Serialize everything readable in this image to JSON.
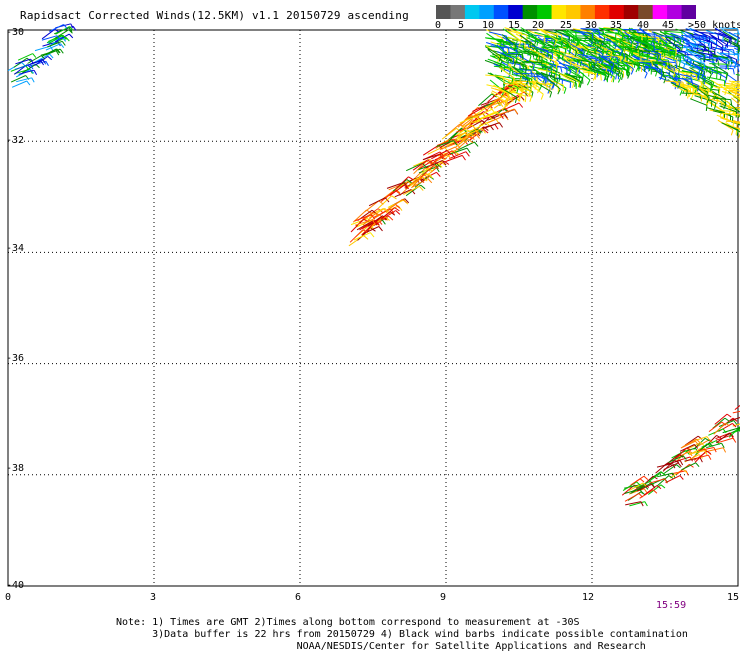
{
  "title": "Rapidsact Corrected Winds(12.5KM) v1.1 20150729 ascending",
  "legend": {
    "colors": [
      "#555555",
      "#777777",
      "#00c8f0",
      "#00a0ff",
      "#0050ff",
      "#0000d0",
      "#009000",
      "#00c800",
      "#ffe600",
      "#ffc800",
      "#ff8000",
      "#ff3000",
      "#e00000",
      "#a00000",
      "#7a4a2a",
      "#ff00ff",
      "#b000e0",
      "#6000a0"
    ],
    "labels": [
      "0",
      "5",
      "10",
      "15",
      "20",
      "25",
      "30",
      "35",
      "40",
      "45",
      ">50 knots"
    ]
  },
  "lat_ticks": [
    "-30",
    "-32",
    "-34",
    "-36",
    "-38",
    "-40"
  ],
  "lon_ticks": [
    "0",
    "3",
    "6",
    "9",
    "12",
    "15"
  ],
  "time_label": "15:59",
  "notes": [
    "Note: 1) Times are GMT 2)Times along bottom correspond to measurement at -30S",
    "      3)Data buffer is 22 hrs from 20150729 4) Black wind barbs indicate possible contamination",
    "                              NOAA/NESDIS/Center for Satellite Applications and Research"
  ],
  "map_data": {
    "lon_range": [
      0,
      15
    ],
    "lat_range": [
      -40,
      -30
    ],
    "swaths": [
      {
        "region": "northwest",
        "lon": [
          0,
          1.1
        ],
        "lat": [
          -31.0,
          -29.9
        ],
        "dominant_speed_knots": [
          12,
          22
        ]
      },
      {
        "region": "center",
        "lon": [
          7.0,
          10.3
        ],
        "lat": [
          -33.8,
          -31.1
        ],
        "dominant_speed_knots": [
          20,
          35
        ]
      },
      {
        "region": "northeast",
        "lon": [
          9.8,
          15
        ],
        "lat": [
          -32.6,
          -30
        ],
        "dominant_speed_knots": [
          12,
          25
        ]
      },
      {
        "region": "southeast",
        "lon": [
          12.6,
          15
        ],
        "lat": [
          -38.6,
          -36.6
        ],
        "dominant_speed_knots": [
          20,
          35
        ]
      }
    ]
  }
}
